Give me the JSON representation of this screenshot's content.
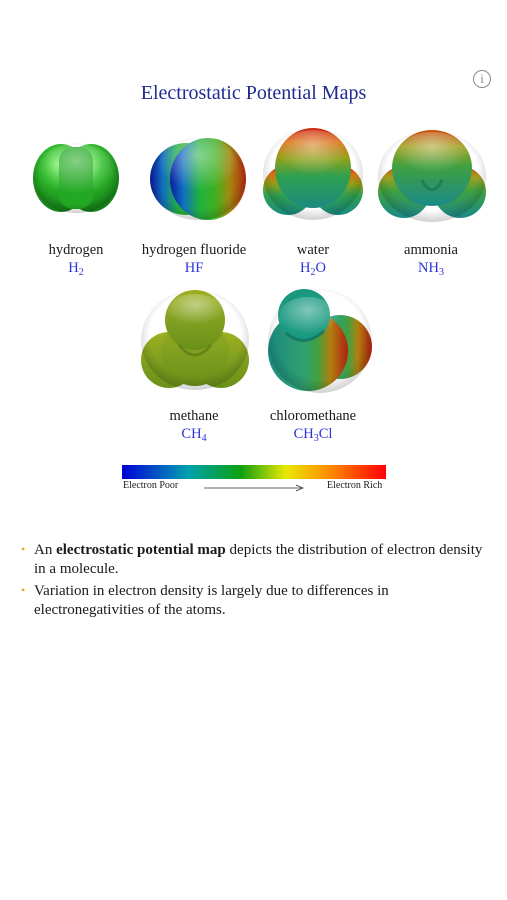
{
  "header": {
    "title": "Electrostatic Potential Maps",
    "info_icon_glyph": "i"
  },
  "molecules": [
    {
      "name": "hydrogen",
      "formula_parts": [
        "H",
        "2",
        ""
      ],
      "icon": "hydrogen-epm-model"
    },
    {
      "name": "hydrogen fluoride",
      "formula_parts": [
        "HF",
        "",
        ""
      ],
      "icon": "hydrogen-fluoride-epm-model"
    },
    {
      "name": "water",
      "formula_parts": [
        "H",
        "2",
        "O"
      ],
      "icon": "water-epm-model"
    },
    {
      "name": "ammonia",
      "formula_parts": [
        "NH",
        "3",
        ""
      ],
      "icon": "ammonia-epm-model"
    },
    {
      "name": "methane",
      "formula_parts": [
        "CH",
        "4",
        ""
      ],
      "icon": "methane-epm-model"
    },
    {
      "name": "chloromethane",
      "formula_parts": [
        "CH",
        "3",
        "Cl"
      ],
      "icon": "chloromethane-epm-model"
    }
  ],
  "scale": {
    "left_label": "Electron Poor",
    "right_label": "Electron Rich",
    "colors": [
      "#0000d8",
      "#00a0b0",
      "#10a010",
      "#e8e800",
      "#ff9000",
      "#ff0000"
    ]
  },
  "bullets": [
    {
      "before": "An ",
      "bold": "electrostatic potential map",
      "after": " depicts the distribution of electron density in a molecule."
    },
    {
      "before": "Variation in electron density is largely due to differences in electronegativities of the atoms.",
      "bold": "",
      "after": ""
    }
  ],
  "colors": {
    "title": "#1f2b8f",
    "formula": "#2b34d6",
    "bullet_marker": "#f0a020"
  }
}
